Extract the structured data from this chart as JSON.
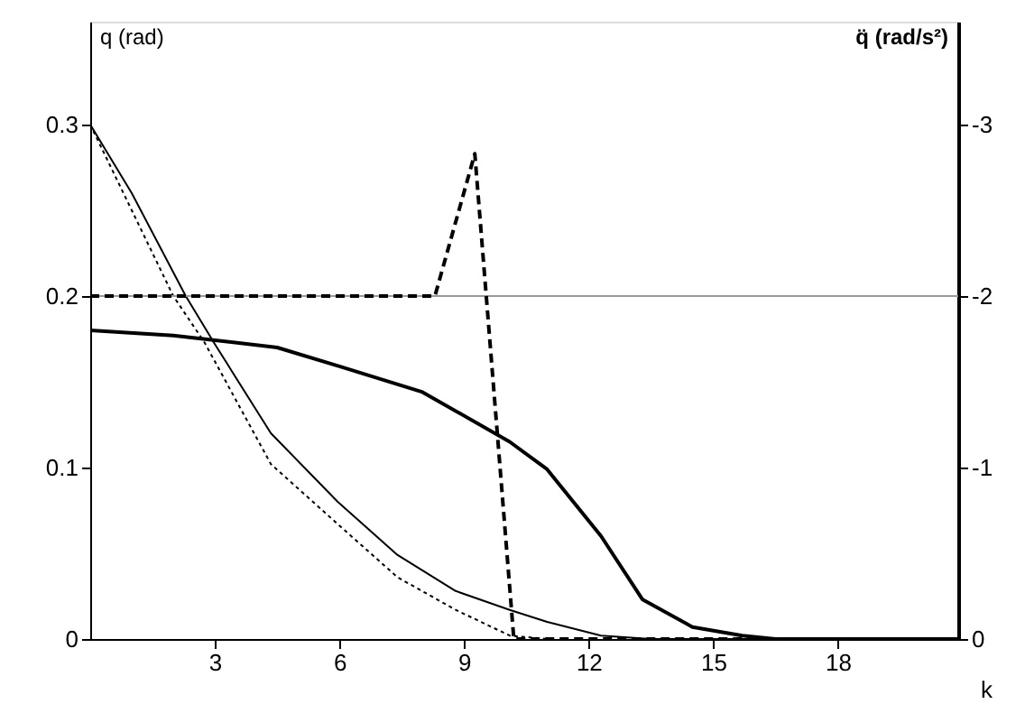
{
  "chart_data": {
    "type": "line",
    "xlabel": "k",
    "ylabel": "q (rad)",
    "y2label": "q̈ (rad/s²)",
    "xlim": [
      0,
      20.9
    ],
    "xticks": [
      3,
      6,
      9,
      12,
      15,
      18
    ],
    "ylim": [
      0,
      0.36
    ],
    "yticks": [
      0,
      0.1,
      0.2,
      0.3
    ],
    "y2lim": [
      0,
      -3.6
    ],
    "y2ticks": [
      0,
      -1,
      -2,
      -3
    ],
    "grid": false,
    "marker": "none",
    "ref_lines": [
      {
        "axis": "y",
        "value": 0.2,
        "color": "#999999",
        "line_style": "solid"
      }
    ],
    "series": [
      {
        "color": "#000000",
        "line_style": "solid",
        "x": [
          0,
          1,
          2.3,
          3,
          4.35,
          5.96,
          7.4,
          8.8,
          10.1,
          11,
          12.3,
          13.5,
          20.9
        ],
        "values": [
          0.3,
          0.26,
          0.2,
          0.172,
          0.12,
          0.08,
          0.049,
          0.028,
          0.017,
          0.01,
          0.002,
          0,
          0
        ]
      },
      {
        "color": "#000000",
        "line_style": "dotted",
        "x": [
          0,
          1,
          2.0,
          2.75,
          4.35,
          5.96,
          7.4,
          8.8,
          10.1,
          11
        ],
        "values": [
          0.3,
          0.25,
          0.2,
          0.173,
          0.102,
          0.067,
          0.036,
          0.017,
          0.002,
          0
        ]
      },
      {
        "color": "#000000",
        "line_style": "solid",
        "x": [
          0,
          2,
          4.5,
          6,
          8,
          10.1,
          11,
          12.3,
          13.3,
          14.5,
          15.7,
          16.5,
          20.9
        ],
        "values": [
          0.18,
          0.177,
          0.17,
          0.159,
          0.144,
          0.115,
          0.099,
          0.06,
          0.023,
          0.007,
          0.002,
          0,
          0
        ]
      },
      {
        "color": "#000000",
        "line_style": "dashed",
        "axis": "y2",
        "x": [
          0,
          8.3,
          9.26,
          10.2,
          20.9
        ],
        "values": [
          -2,
          -2,
          -2.83,
          0,
          0
        ]
      }
    ]
  }
}
